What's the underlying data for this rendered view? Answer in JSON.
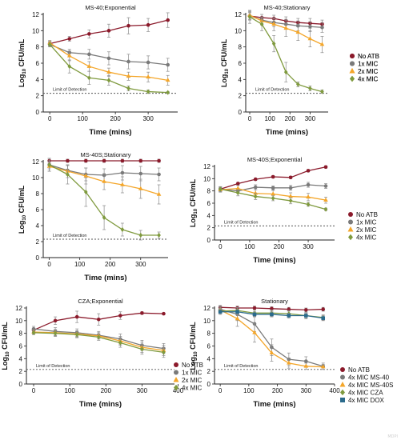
{
  "figure": {
    "watermark": "MDPI"
  },
  "colors": {
    "no_atb": "#8b1a2b",
    "mic1": "#7a7a7a",
    "mic2": "#f4a62a",
    "mic4": "#7f9a3e",
    "dox": "#2b6b8c",
    "lod_line": "#555555",
    "errbar": "#8a8a8a",
    "axis": "#222222"
  },
  "chart_data": [
    {
      "type": "line",
      "title": "MS-40;Exponential",
      "xlabel": "Time (mins)",
      "ylabel_main": "Log",
      "ylabel_sub": "10",
      "ylabel_tail": " CFU/mL",
      "x": [
        0,
        60,
        120,
        180,
        240,
        300,
        360
      ],
      "xlim": [
        -20,
        390
      ],
      "ylim": [
        0,
        12
      ],
      "xticks": [
        0,
        100,
        200,
        300
      ],
      "yticks": [
        0,
        2,
        4,
        6,
        8,
        10,
        12
      ],
      "lod": {
        "y": 2.3,
        "label": "Limit of Detection"
      },
      "legend": {
        "position": "right",
        "entries": [
          "No ATB",
          "1x MIC",
          "2x MIC",
          "4x MIC"
        ]
      },
      "series": [
        {
          "name": "No ATB",
          "color": "#8b1a2b",
          "marker": "circle",
          "values": [
            8.4,
            9.0,
            9.6,
            10.0,
            10.6,
            10.7,
            11.3
          ],
          "err": [
            0.3,
            0.3,
            0.5,
            0.8,
            1.0,
            0.8,
            0.9
          ]
        },
        {
          "name": "1x MIC",
          "color": "#7a7a7a",
          "marker": "circle",
          "values": [
            8.3,
            7.3,
            7.1,
            6.6,
            6.2,
            6.1,
            5.8
          ],
          "err": [
            0.3,
            0.4,
            0.6,
            0.8,
            0.9,
            0.8,
            0.8
          ]
        },
        {
          "name": "2x MIC",
          "color": "#f4a62a",
          "marker": "triangle",
          "values": [
            8.5,
            6.9,
            5.6,
            4.9,
            4.4,
            4.3,
            3.9
          ],
          "err": [
            0.3,
            0.6,
            0.6,
            0.5,
            0.5,
            0.6,
            0.6
          ]
        },
        {
          "name": "4x MIC",
          "color": "#7f9a3e",
          "marker": "diamond",
          "values": [
            8.3,
            5.6,
            4.2,
            3.9,
            2.9,
            2.5,
            2.4
          ],
          "err": [
            0.3,
            0.8,
            0.8,
            0.6,
            0.3,
            0.2,
            0.1
          ]
        }
      ]
    },
    {
      "type": "line",
      "title": "MS-40;Stationary",
      "xlabel": "Time (mins)",
      "ylabel_main": "Log",
      "ylabel_sub": "10",
      "ylabel_tail": " CFU/mL",
      "x": [
        0,
        60,
        120,
        180,
        240,
        300,
        360
      ],
      "xlim": [
        -20,
        390
      ],
      "ylim": [
        0,
        12
      ],
      "xticks": [
        0,
        100,
        200,
        300
      ],
      "yticks": [
        0,
        2,
        4,
        6,
        8,
        10,
        12
      ],
      "lod": {
        "y": 2.3,
        "label": "Limit of Detection"
      },
      "legend": {
        "position": "right",
        "entries": [
          "No ATB",
          "1x MIC",
          "2x MIC",
          "4x MIC"
        ]
      },
      "series": [
        {
          "name": "No ATB",
          "color": "#8b1a2b",
          "marker": "circle",
          "values": [
            11.8,
            11.6,
            11.5,
            11.2,
            11.0,
            10.9,
            10.8
          ],
          "err": [
            0.5,
            0.4,
            0.4,
            0.5,
            0.5,
            0.6,
            0.5
          ]
        },
        {
          "name": "1x MIC",
          "color": "#7a7a7a",
          "marker": "circle",
          "values": [
            11.8,
            11.3,
            11.0,
            10.8,
            10.6,
            10.5,
            10.4
          ],
          "err": [
            0.4,
            0.4,
            0.5,
            0.6,
            0.6,
            0.6,
            0.6
          ]
        },
        {
          "name": "2x MIC",
          "color": "#f4a62a",
          "marker": "triangle",
          "values": [
            11.9,
            11.2,
            10.8,
            10.3,
            9.8,
            9.0,
            8.3
          ],
          "err": [
            0.5,
            0.5,
            0.8,
            1.0,
            1.0,
            1.0,
            1.0
          ]
        },
        {
          "name": "4x MIC",
          "color": "#7f9a3e",
          "marker": "diamond",
          "values": [
            11.7,
            10.8,
            8.4,
            4.9,
            3.4,
            2.9,
            2.5
          ],
          "err": [
            0.8,
            0.8,
            1.0,
            1.2,
            0.3,
            0.3,
            0.2
          ]
        }
      ]
    },
    {
      "type": "line",
      "title": "MS-40S;Stationary",
      "xlabel": "Time (mins)",
      "ylabel_main": "Log",
      "ylabel_sub": "10",
      "ylabel_tail": " CFU/mL",
      "x": [
        0,
        60,
        120,
        180,
        240,
        300,
        360
      ],
      "xlim": [
        -20,
        390
      ],
      "ylim": [
        0,
        12
      ],
      "xticks": [
        0,
        100,
        200,
        300
      ],
      "yticks": [
        0,
        2,
        4,
        6,
        8,
        10,
        12
      ],
      "lod": {
        "y": 2.3,
        "label": "Limit of Detection"
      },
      "legend": {
        "position": "none",
        "entries": []
      },
      "series": [
        {
          "name": "No ATB",
          "color": "#8b1a2b",
          "marker": "circle",
          "values": [
            12.1,
            12.1,
            12.1,
            12.1,
            12.1,
            12.1,
            12.1
          ],
          "err": [
            0.3,
            0.2,
            0.2,
            0.2,
            0.2,
            0.2,
            0.2
          ]
        },
        {
          "name": "1x MIC",
          "color": "#7a7a7a",
          "marker": "circle",
          "values": [
            11.6,
            10.9,
            10.4,
            10.3,
            10.6,
            10.5,
            10.4
          ],
          "err": [
            0.5,
            0.6,
            0.8,
            0.8,
            0.9,
            0.9,
            0.8
          ]
        },
        {
          "name": "2x MIC",
          "color": "#f4a62a",
          "marker": "triangle",
          "values": [
            11.4,
            10.8,
            10.2,
            9.5,
            9.1,
            8.6,
            7.9
          ],
          "err": [
            0.6,
            0.8,
            1.0,
            1.0,
            1.0,
            1.2,
            1.2
          ]
        },
        {
          "name": "4x MIC",
          "color": "#7f9a3e",
          "marker": "diamond",
          "values": [
            11.6,
            10.4,
            8.2,
            5.0,
            3.5,
            2.8,
            2.8
          ],
          "err": [
            0.8,
            1.2,
            1.8,
            1.5,
            0.8,
            0.6,
            0.4
          ]
        }
      ]
    },
    {
      "type": "line",
      "title": "MS-40S;Exponential",
      "xlabel": "Time (mins)",
      "ylabel_main": "Log",
      "ylabel_sub": "10",
      "ylabel_tail": " CFU/mL",
      "x": [
        0,
        60,
        120,
        180,
        240,
        300,
        360
      ],
      "xlim": [
        -20,
        390
      ],
      "ylim": [
        0,
        12
      ],
      "xticks": [
        0,
        100,
        200,
        300
      ],
      "yticks": [
        0,
        2,
        4,
        6,
        8,
        10,
        12
      ],
      "lod": {
        "y": 2.3,
        "label": "Limit of Detection"
      },
      "legend": {
        "position": "right",
        "entries": [
          "No ATB",
          "1x MIC",
          "2x MIC",
          "4x MIC"
        ]
      },
      "series": [
        {
          "name": "No ATB",
          "color": "#8b1a2b",
          "marker": "circle",
          "values": [
            8.3,
            9.2,
            9.9,
            10.3,
            10.2,
            11.3,
            11.9
          ],
          "err": [
            0.3,
            0.2,
            0.2,
            0.2,
            0.2,
            0.2,
            0.2
          ]
        },
        {
          "name": "1x MIC",
          "color": "#7a7a7a",
          "marker": "circle",
          "values": [
            8.3,
            8.0,
            8.6,
            8.5,
            8.5,
            9.0,
            8.8
          ],
          "err": [
            0.4,
            0.4,
            0.4,
            0.3,
            0.4,
            0.4,
            0.4
          ]
        },
        {
          "name": "2x MIC",
          "color": "#f4a62a",
          "marker": "triangle",
          "values": [
            8.2,
            8.4,
            7.6,
            7.5,
            7.1,
            7.0,
            6.5
          ],
          "err": [
            0.4,
            0.5,
            0.6,
            0.6,
            0.6,
            0.6,
            0.5
          ]
        },
        {
          "name": "4x MIC",
          "color": "#7f9a3e",
          "marker": "diamond",
          "values": [
            8.3,
            7.7,
            7.1,
            6.8,
            6.4,
            5.8,
            5.0
          ],
          "err": [
            0.4,
            0.5,
            0.5,
            0.4,
            0.5,
            0.3,
            0.2
          ]
        }
      ]
    },
    {
      "type": "line",
      "title": "CZA;Exponential",
      "xlabel": "Time (mins)",
      "ylabel_main": "Log",
      "ylabel_sub": "10",
      "ylabel_tail": " CFU/mL",
      "x": [
        0,
        60,
        120,
        180,
        240,
        300,
        360
      ],
      "xlim": [
        -20,
        390
      ],
      "ylim": [
        0,
        12
      ],
      "xticks": [
        0,
        100,
        200,
        300,
        400
      ],
      "yticks": [
        0,
        2,
        4,
        6,
        8,
        10,
        12
      ],
      "lod": {
        "y": 2.3,
        "label": "Limit of Detection"
      },
      "legend": {
        "position": "right",
        "entries": [
          "No ATB",
          "1x MIC",
          "2x MIC",
          "4x MIC"
        ]
      },
      "series": [
        {
          "name": "No ATB",
          "color": "#8b1a2b",
          "marker": "circle",
          "values": [
            8.5,
            10.0,
            10.6,
            10.2,
            10.8,
            11.2,
            11.1
          ],
          "err": [
            0.3,
            0.6,
            0.9,
            0.9,
            0.6,
            0.2,
            0.1
          ]
        },
        {
          "name": "1x MIC",
          "color": "#7a7a7a",
          "marker": "circle",
          "values": [
            8.7,
            8.3,
            8.1,
            7.7,
            7.1,
            6.1,
            5.6
          ],
          "err": [
            0.4,
            0.6,
            0.6,
            0.6,
            0.8,
            0.8,
            0.8
          ]
        },
        {
          "name": "2x MIC",
          "color": "#f4a62a",
          "marker": "triangle",
          "values": [
            8.2,
            8.1,
            7.9,
            7.6,
            6.8,
            5.8,
            5.3
          ],
          "err": [
            0.3,
            0.5,
            0.5,
            0.5,
            0.7,
            0.8,
            0.8
          ]
        },
        {
          "name": "4x MIC",
          "color": "#7f9a3e",
          "marker": "diamond",
          "values": [
            8.1,
            8.0,
            7.8,
            7.4,
            6.5,
            5.5,
            5.0
          ],
          "err": [
            0.3,
            0.5,
            0.5,
            0.5,
            0.7,
            0.8,
            0.8
          ]
        }
      ]
    },
    {
      "type": "line",
      "title": "Stationary",
      "xlabel": "Time (mins)",
      "ylabel_main": "Log",
      "ylabel_sub": "10",
      "ylabel_tail": " CFU/mL",
      "x": [
        0,
        60,
        120,
        180,
        240,
        300,
        360
      ],
      "xlim": [
        -20,
        400
      ],
      "ylim": [
        0,
        12
      ],
      "xticks": [
        0,
        100,
        200,
        300,
        400
      ],
      "yticks": [
        0,
        2,
        4,
        6,
        8,
        10,
        12
      ],
      "lod": {
        "y": 2.3,
        "label": "Limit of Detection"
      },
      "legend": {
        "position": "right",
        "entries": [
          "No ATB",
          "4x MIC MS-40",
          "4x MIC MS-40S",
          "4x MIC CZA",
          "4x MIC DOX"
        ]
      },
      "series": [
        {
          "name": "No ATB",
          "color": "#8b1a2b",
          "marker": "circle",
          "values": [
            12.1,
            12.0,
            12.0,
            11.9,
            11.8,
            11.7,
            11.8
          ],
          "err": [
            0.3,
            0.3,
            0.3,
            0.3,
            0.3,
            0.3,
            0.3
          ]
        },
        {
          "name": "4x MIC MS-40",
          "color": "#7a7a7a",
          "marker": "circle",
          "values": [
            11.8,
            11.0,
            9.5,
            5.8,
            3.9,
            3.6,
            2.8
          ],
          "err": [
            0.5,
            1.0,
            1.2,
            1.3,
            1.0,
            0.7,
            0.5
          ]
        },
        {
          "name": "4x MIC MS-40S",
          "color": "#f4a62a",
          "marker": "triangle",
          "values": [
            11.7,
            10.3,
            8.1,
            4.9,
            3.3,
            2.8,
            2.7
          ],
          "err": [
            0.5,
            1.2,
            1.5,
            1.3,
            0.8,
            0.5,
            0.4
          ]
        },
        {
          "name": "4x MIC CZA",
          "color": "#7f9a3e",
          "marker": "diamond",
          "values": [
            11.5,
            11.6,
            11.2,
            11.2,
            11.1,
            10.8,
            10.5
          ],
          "err": [
            0.5,
            0.5,
            0.5,
            0.5,
            0.5,
            0.5,
            0.4
          ]
        },
        {
          "name": "4x MIC DOX",
          "color": "#2b6b8c",
          "marker": "square",
          "values": [
            11.4,
            11.4,
            11.0,
            11.0,
            10.8,
            10.8,
            10.4
          ],
          "err": [
            0.4,
            0.4,
            0.4,
            0.4,
            0.4,
            0.4,
            0.4
          ]
        }
      ]
    }
  ]
}
